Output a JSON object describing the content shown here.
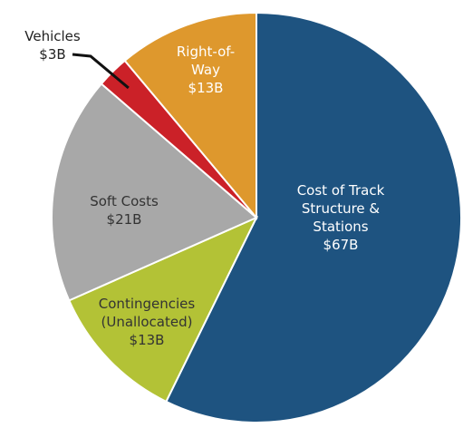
{
  "chart_data": {
    "type": "pie",
    "categories": [
      "Cost of Track Structure & Stations",
      "Contingencies (Unallocated)",
      "Soft Costs",
      "Vehicles",
      "Right-of-Way"
    ],
    "values": [
      67,
      13,
      21,
      3,
      13
    ],
    "value_labels": [
      "$67B",
      "$13B",
      "$21B",
      "$3B",
      "$13B"
    ],
    "colors": [
      "#1e5380",
      "#b3c236",
      "#a8a8a8",
      "#cb2128",
      "#de982d"
    ]
  }
}
